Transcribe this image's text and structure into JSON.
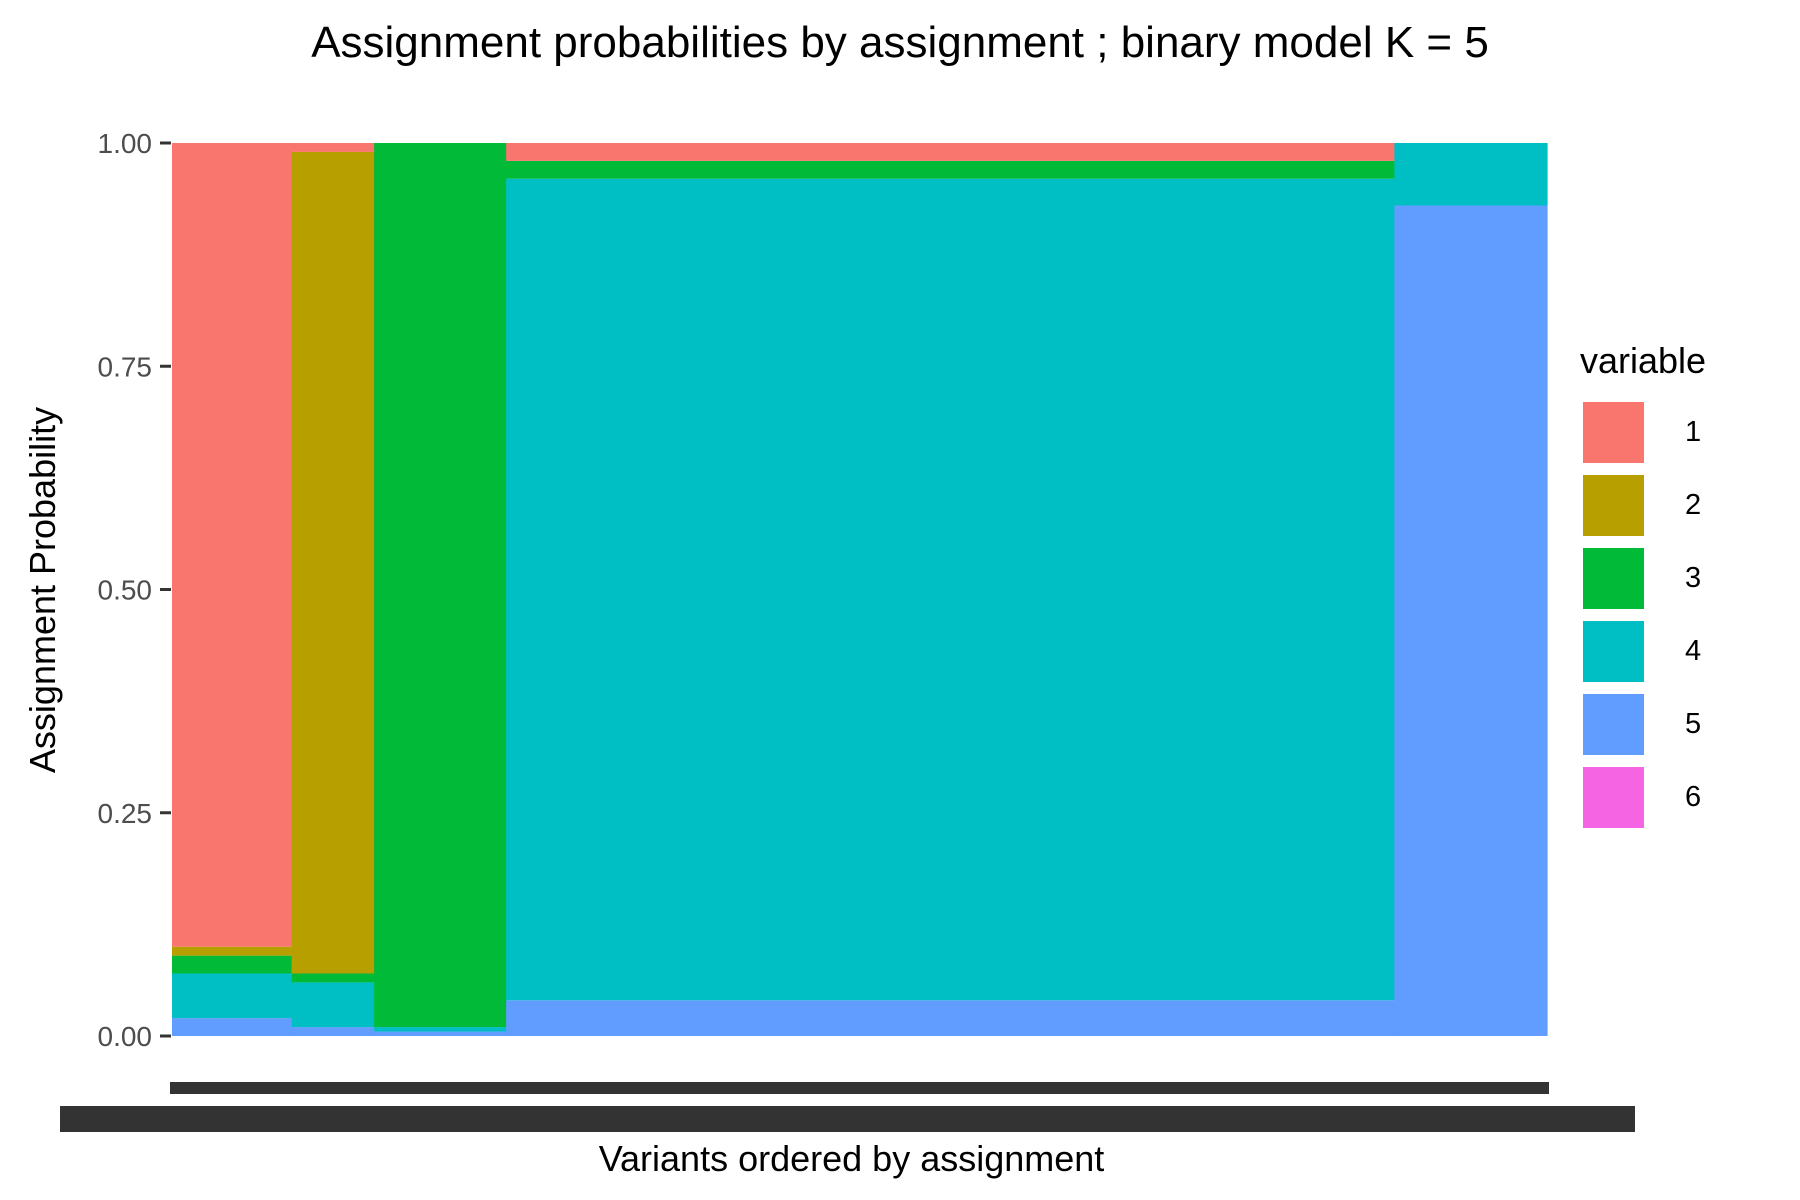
{
  "chart_data": {
    "type": "bar",
    "stacked": true,
    "title": "Assignment probabilities by assignment ; binary model K = 5",
    "xlabel": "Variants ordered by assignment",
    "ylabel": "Assignment Probability",
    "ylim": [
      0,
      1
    ],
    "y_ticks": [
      "0.00",
      "0.25",
      "0.50",
      "0.75",
      "1.00"
    ],
    "grid": false,
    "legend": {
      "title": "variable",
      "position": "right",
      "entries": [
        {
          "label": "1",
          "color": "#F8766D"
        },
        {
          "label": "2",
          "color": "#B79F00"
        },
        {
          "label": "3",
          "color": "#00BA38"
        },
        {
          "label": "4",
          "color": "#00BFC4"
        },
        {
          "label": "5",
          "color": "#619CFF"
        },
        {
          "label": "6",
          "color": "#F564E3"
        }
      ]
    },
    "x_tick_labels_overplotted": true,
    "groups": [
      {
        "assignment": "1",
        "share_of_variants": 0.087,
        "mean_probabilities": {
          "1": 0.9,
          "2": 0.01,
          "3": 0.02,
          "4": 0.05,
          "5": 0.02,
          "6": 0.0
        }
      },
      {
        "assignment": "2",
        "share_of_variants": 0.06,
        "mean_probabilities": {
          "1": 0.01,
          "2": 0.92,
          "3": 0.01,
          "4": 0.05,
          "5": 0.01,
          "6": 0.0
        }
      },
      {
        "assignment": "3",
        "share_of_variants": 0.096,
        "mean_probabilities": {
          "1": 0.0,
          "2": 0.0,
          "3": 0.99,
          "4": 0.005,
          "5": 0.005,
          "6": 0.0
        }
      },
      {
        "assignment": "4",
        "share_of_variants": 0.646,
        "mean_probabilities": {
          "1": 0.02,
          "2": 0.0,
          "3": 0.02,
          "4": 0.92,
          "5": 0.04,
          "6": 0.0
        }
      },
      {
        "assignment": "5",
        "share_of_variants": 0.111,
        "mean_probabilities": {
          "1": 0.0,
          "2": 0.0,
          "3": 0.0,
          "4": 0.07,
          "5": 0.93,
          "6": 0.0
        }
      }
    ]
  }
}
